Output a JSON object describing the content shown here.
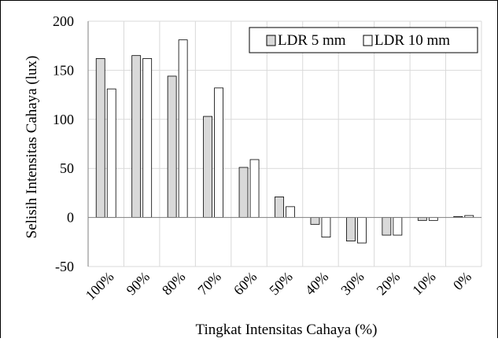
{
  "chart_data": {
    "type": "bar",
    "title": "",
    "xlabel": "Tingkat Intensitas Cahaya (%)",
    "ylabel": "Selisih Intensitas Cahaya (lux)",
    "categories": [
      "100%",
      "90%",
      "80%",
      "70%",
      "60%",
      "50%",
      "40%",
      "30%",
      "20%",
      "10%",
      "0%"
    ],
    "ylim": [
      -50,
      200
    ],
    "yticks": [
      -50,
      0,
      50,
      100,
      150,
      200
    ],
    "ytick_labels": [
      "-50",
      "0",
      "50",
      "100",
      "150",
      "200"
    ],
    "grid": true,
    "legend_position": "top-right",
    "series": [
      {
        "name": "LDR 5 mm",
        "color": "#d9d9d9",
        "values": [
          162,
          165,
          144,
          103,
          51,
          21,
          -7,
          -24,
          -18,
          -3,
          1
        ]
      },
      {
        "name": "LDR 10 mm",
        "color": "#ffffff",
        "values": [
          131,
          162,
          181,
          132,
          59,
          11,
          -20,
          -26,
          -18,
          -3,
          2
        ]
      }
    ]
  }
}
